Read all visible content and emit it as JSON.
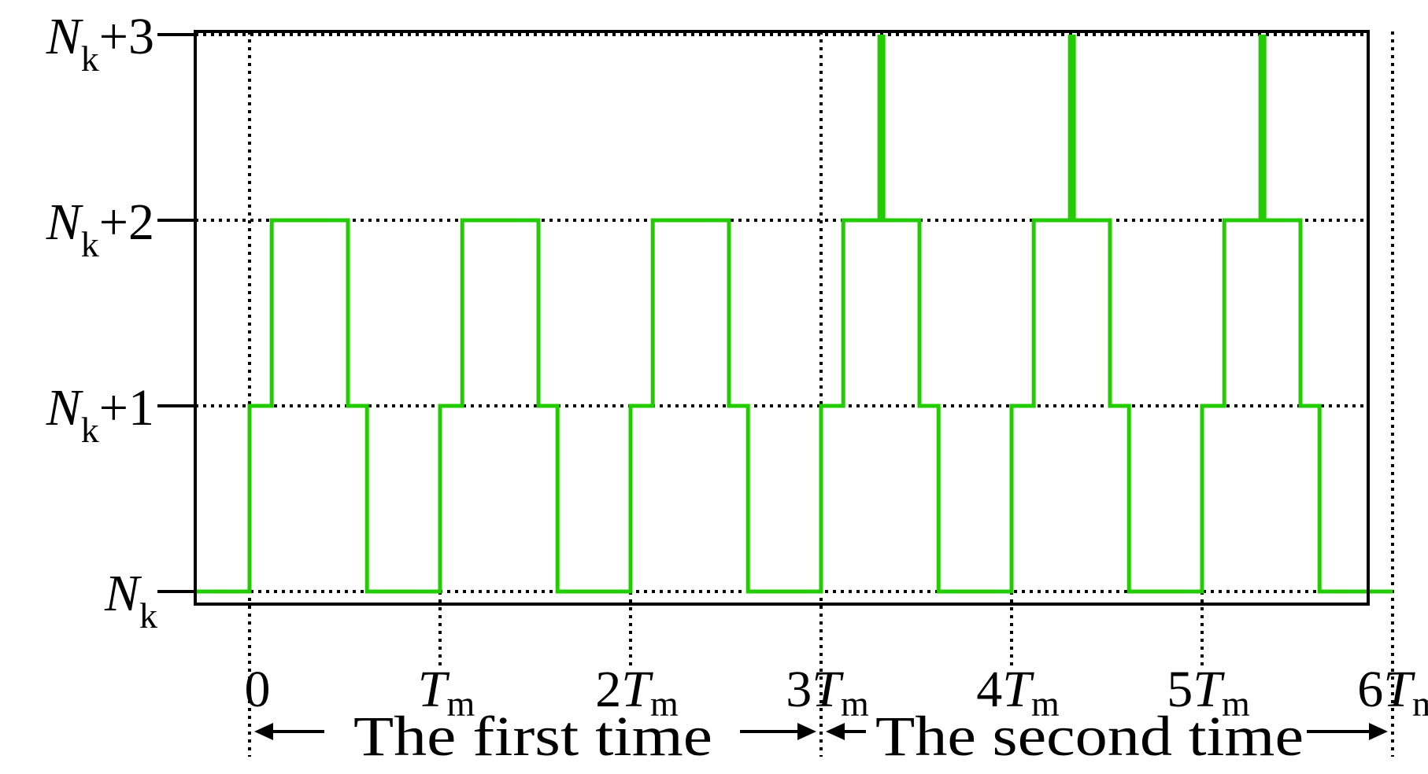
{
  "chart_data": {
    "type": "line",
    "title": "",
    "xlabel": "",
    "ylabel": "",
    "x_range": [
      -0.2833,
      6.0
    ],
    "y_range": [
      0,
      3
    ],
    "grid": true,
    "y_tick_labels": [
      {
        "value": 0,
        "base": "N",
        "sub": "k",
        "suffix": ""
      },
      {
        "value": 1,
        "base": "N",
        "sub": "k",
        "suffix": "+1"
      },
      {
        "value": 2,
        "base": "N",
        "sub": "k",
        "suffix": "+2"
      },
      {
        "value": 3,
        "base": "N",
        "sub": "k",
        "suffix": "+3"
      }
    ],
    "x_tick_labels": [
      {
        "value": 0,
        "coef": "0",
        "var": "",
        "sub": ""
      },
      {
        "value": 1,
        "coef": "",
        "var": "T",
        "sub": "m"
      },
      {
        "value": 2,
        "coef": "2",
        "var": "T",
        "sub": "m"
      },
      {
        "value": 3,
        "coef": "3",
        "var": "T",
        "sub": "m"
      },
      {
        "value": 4,
        "coef": "4",
        "var": "T",
        "sub": "m"
      },
      {
        "value": 5,
        "coef": "5",
        "var": "T",
        "sub": "m"
      },
      {
        "value": 6,
        "coef": "6",
        "var": "T",
        "sub": "m"
      }
    ],
    "intervals": [
      {
        "label": "The first time",
        "start": 0,
        "end": 3
      },
      {
        "label": "The second time",
        "start": 3,
        "end": 6
      }
    ],
    "series": [
      {
        "color": "#22cc00",
        "step_points": [
          [
            -0.2833,
            0
          ],
          [
            0,
            0
          ],
          [
            0,
            1
          ],
          [
            0.1167,
            1
          ],
          [
            0.1167,
            2
          ],
          [
            0.5167,
            2
          ],
          [
            0.5167,
            1
          ],
          [
            0.6167,
            1
          ],
          [
            0.6167,
            0
          ],
          [
            1.0,
            0
          ],
          [
            1.0,
            1
          ],
          [
            1.1167,
            1
          ],
          [
            1.1167,
            2
          ],
          [
            1.5167,
            2
          ],
          [
            1.5167,
            1
          ],
          [
            1.6167,
            1
          ],
          [
            1.6167,
            0
          ],
          [
            2.0,
            0
          ],
          [
            2.0,
            1
          ],
          [
            2.1167,
            1
          ],
          [
            2.1167,
            2
          ],
          [
            2.5167,
            2
          ],
          [
            2.5167,
            1
          ],
          [
            2.6167,
            1
          ],
          [
            2.6167,
            0
          ],
          [
            3.0,
            0
          ],
          [
            3.0,
            1
          ],
          [
            3.1167,
            1
          ],
          [
            3.1167,
            2
          ],
          [
            3.3167,
            2
          ],
          [
            3.3167,
            3
          ],
          [
            3.3167,
            2
          ],
          [
            3.5167,
            2
          ],
          [
            3.5167,
            1
          ],
          [
            3.6167,
            1
          ],
          [
            3.6167,
            0
          ],
          [
            4.0,
            0
          ],
          [
            4.0,
            1
          ],
          [
            4.1167,
            1
          ],
          [
            4.1167,
            2
          ],
          [
            4.3167,
            2
          ],
          [
            4.3167,
            3
          ],
          [
            4.3167,
            2
          ],
          [
            4.5167,
            2
          ],
          [
            4.5167,
            1
          ],
          [
            4.6167,
            1
          ],
          [
            4.6167,
            0
          ],
          [
            5.0,
            0
          ],
          [
            5.0,
            1
          ],
          [
            5.1167,
            1
          ],
          [
            5.1167,
            2
          ],
          [
            5.3167,
            2
          ],
          [
            5.3167,
            3
          ],
          [
            5.3167,
            2
          ],
          [
            5.5167,
            2
          ],
          [
            5.5167,
            1
          ],
          [
            5.6167,
            1
          ],
          [
            5.6167,
            0
          ],
          [
            6.0,
            0
          ]
        ],
        "spikes": [
          {
            "x": 3.3167,
            "from": 2,
            "to": 3
          },
          {
            "x": 4.3167,
            "from": 2,
            "to": 3
          },
          {
            "x": 5.3167,
            "from": 2,
            "to": 3
          }
        ]
      }
    ]
  }
}
